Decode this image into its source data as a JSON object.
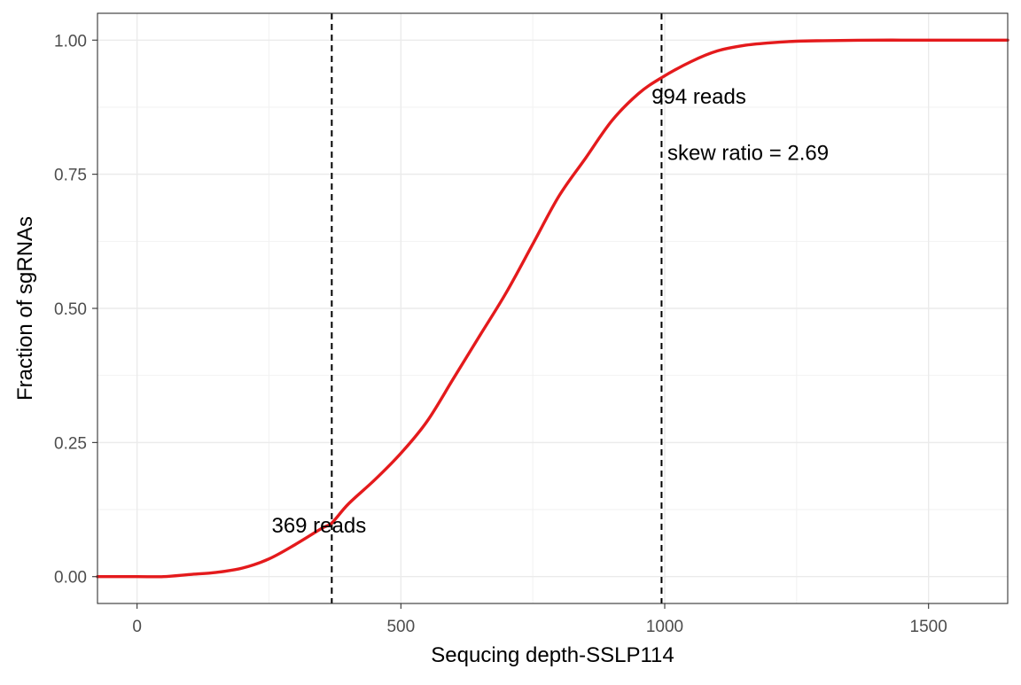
{
  "chart_data": {
    "type": "line",
    "title": "",
    "xlabel": "Sequcing depth-SSLP114",
    "ylabel": "Fraction of sgRNAs",
    "xlim": [
      -75,
      1650
    ],
    "ylim": [
      -0.05,
      1.05
    ],
    "x_ticks": [
      0,
      500,
      1000,
      1500
    ],
    "x_tick_labels": [
      "0",
      "500",
      "1000",
      "1500"
    ],
    "y_ticks": [
      0,
      0.25,
      0.5,
      0.75,
      1.0
    ],
    "y_tick_labels": [
      "0.00",
      "0.25",
      "0.50",
      "0.75",
      "1.00"
    ],
    "grid": true,
    "legend": "none",
    "series": [
      {
        "color": "#e41a1c",
        "x": [
          -75,
          0,
          50,
          100,
          150,
          200,
          250,
          300,
          350,
          369,
          400,
          450,
          500,
          550,
          600,
          650,
          700,
          750,
          800,
          850,
          900,
          950,
          994,
          1050,
          1100,
          1150,
          1200,
          1250,
          1300,
          1400,
          1500,
          1650
        ],
        "y": [
          0.0,
          0.0,
          0.0,
          0.004,
          0.008,
          0.016,
          0.033,
          0.06,
          0.09,
          0.1,
          0.135,
          0.18,
          0.23,
          0.29,
          0.37,
          0.45,
          0.53,
          0.62,
          0.71,
          0.78,
          0.85,
          0.9,
          0.93,
          0.96,
          0.98,
          0.99,
          0.995,
          0.998,
          0.999,
          1.0,
          1.0,
          1.0
        ]
      }
    ],
    "vlines": [
      {
        "x": 369,
        "style": "dashed",
        "color": "#000000"
      },
      {
        "x": 994,
        "style": "dashed",
        "color": "#000000"
      }
    ],
    "annotations": [
      {
        "text": "369 reads",
        "x": 255,
        "y": 0.095
      },
      {
        "text": "994 reads",
        "x": 975,
        "y": 0.895
      },
      {
        "text": "skew ratio = 2.69",
        "x": 1005,
        "y": 0.79
      }
    ]
  }
}
